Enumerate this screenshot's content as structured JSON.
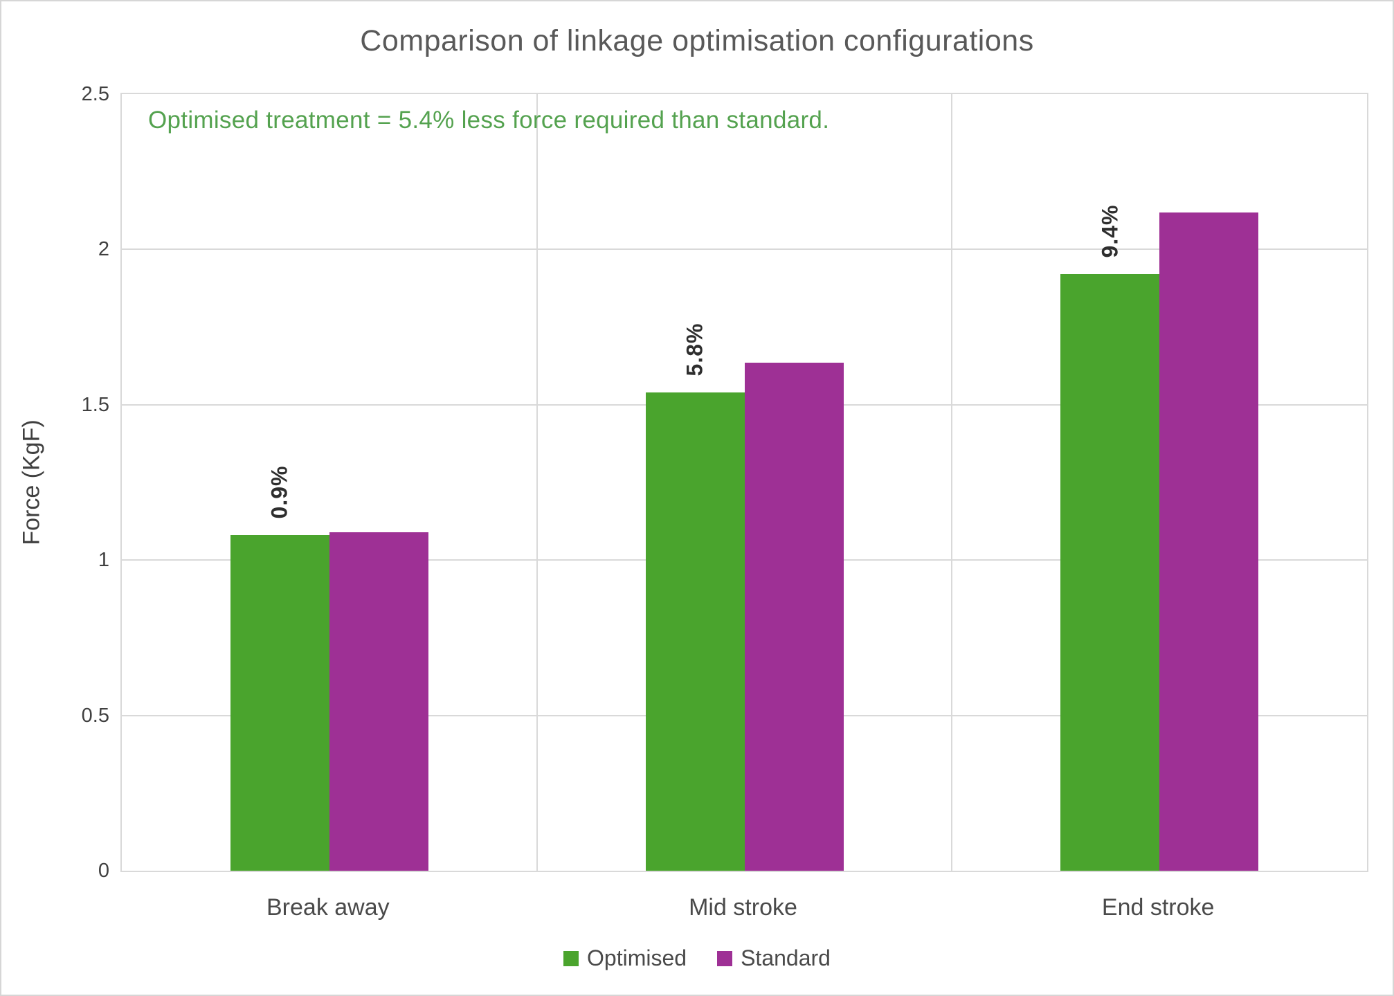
{
  "title": "Comparison of linkage optimisation configurations",
  "annotation": {
    "text": "Optimised treatment = 5.4% less force required than standard.",
    "color": "#54a24f"
  },
  "chart_data": {
    "type": "bar",
    "categories": [
      "Break away",
      "Mid stroke",
      "End stroke"
    ],
    "series": [
      {
        "name": "Optimised",
        "color": "#4aa42d",
        "values": [
          1.08,
          1.54,
          1.92
        ]
      },
      {
        "name": "Standard",
        "color": "#9e3095",
        "values": [
          1.09,
          1.635,
          2.12
        ]
      }
    ],
    "bar_percent_labels": [
      "0.9%",
      "5.8%",
      "9.4%"
    ],
    "ylabel": "Force (KgF)",
    "xlabel": "",
    "ylim": [
      0,
      2.5
    ],
    "yticks": [
      0,
      0.5,
      1,
      1.5,
      2,
      2.5
    ],
    "ytick_labels": [
      "0",
      "0.5",
      "1",
      "1.5",
      "2",
      "2.5"
    ],
    "grid": true,
    "legend_position": "bottom"
  },
  "colors": {
    "optimised": "#4aa42d",
    "standard": "#9e3095",
    "gridline": "#d9d9d9",
    "title_text": "#595959",
    "axis_text": "#404040",
    "data_label_text": "#2e2e2e"
  }
}
